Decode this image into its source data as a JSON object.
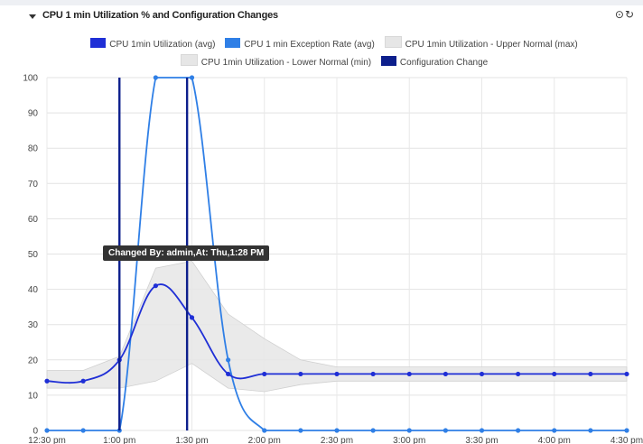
{
  "panel": {
    "title": "CPU 1 min Utilization % and Configuration Changes",
    "icons": [
      "clock-icon",
      "refresh-icon"
    ],
    "clock_glyph": "⊙",
    "refresh_glyph": "↻"
  },
  "legend": [
    {
      "name": "CPU 1min Utilization (avg)",
      "color": "#1f2fd6"
    },
    {
      "name": "CPU 1 min Exception Rate (avg)",
      "color": "#2f7fe6"
    },
    {
      "name": "CPU 1min Utilization - Upper Normal (max)",
      "color": "#e6e6e6"
    },
    {
      "name": "CPU 1min Utilization - Lower Normal (min)",
      "color": "#e6e6e6"
    },
    {
      "name": "Configuration Change",
      "color": "#0d1f8c"
    }
  ],
  "tooltip": {
    "text": "Changed By: admin,At: Thu,1:28 PM"
  },
  "chart_data": {
    "type": "line",
    "x_ticks": [
      "12:30 pm",
      "1:00 pm",
      "1:30 pm",
      "2:00 pm",
      "2:30 pm",
      "3:00 pm",
      "3:30 pm",
      "4:00 pm",
      "4:30 pm"
    ],
    "ylim": [
      0,
      100
    ],
    "y_ticks": [
      0,
      10,
      20,
      30,
      40,
      50,
      60,
      70,
      80,
      90,
      100
    ],
    "grid": true,
    "series": [
      {
        "name": "CPU 1min Utilization (avg)",
        "color": "#1f2fd6",
        "x": [
          "12:30 pm",
          "12:45 pm",
          "1:00 pm",
          "1:15 pm",
          "1:30 pm",
          "1:45 pm",
          "2:00 pm",
          "2:15 pm",
          "2:30 pm",
          "2:45 pm",
          "3:00 pm",
          "3:15 pm",
          "3:30 pm",
          "3:45 pm",
          "4:00 pm",
          "4:15 pm",
          "4:30 pm"
        ],
        "values": [
          14,
          14,
          20,
          41,
          32,
          16,
          16,
          16,
          16,
          16,
          16,
          16,
          16,
          16,
          16,
          16,
          16
        ]
      },
      {
        "name": "CPU 1 min Exception Rate (avg)",
        "color": "#2f7fe6",
        "x": [
          "12:30 pm",
          "12:45 pm",
          "1:00 pm",
          "1:15 pm",
          "1:30 pm",
          "1:45 pm",
          "2:00 pm",
          "2:15 pm",
          "2:30 pm",
          "2:45 pm",
          "3:00 pm",
          "3:15 pm",
          "3:30 pm",
          "3:45 pm",
          "4:00 pm",
          "4:15 pm",
          "4:30 pm"
        ],
        "values": [
          0,
          0,
          0,
          100,
          100,
          20,
          0,
          0,
          0,
          0,
          0,
          0,
          0,
          0,
          0,
          0,
          0
        ]
      }
    ],
    "normal_band": {
      "name_upper": "CPU 1min Utilization - Upper Normal (max)",
      "name_lower": "CPU 1min Utilization - Lower Normal (min)",
      "color": "#e6e6e6",
      "x": [
        "12:30 pm",
        "12:45 pm",
        "1:00 pm",
        "1:15 pm",
        "1:30 pm",
        "1:45 pm",
        "2:00 pm",
        "2:15 pm",
        "2:30 pm",
        "2:45 pm",
        "3:00 pm",
        "3:15 pm",
        "3:30 pm",
        "3:45 pm",
        "4:00 pm",
        "4:15 pm",
        "4:30 pm"
      ],
      "upper": [
        17,
        17,
        21,
        46,
        48,
        33,
        26,
        20,
        18,
        18,
        18,
        18,
        18,
        18,
        18,
        18,
        18
      ],
      "lower": [
        12,
        12,
        12,
        14,
        19,
        12,
        11,
        13,
        14,
        14,
        14,
        14,
        14,
        14,
        14,
        14,
        14
      ]
    },
    "config_changes": [
      {
        "x": "1:00 pm",
        "label": ""
      },
      {
        "x": "1:28 pm",
        "label": "Changed By: admin,At: Thu,1:28 PM"
      }
    ]
  }
}
